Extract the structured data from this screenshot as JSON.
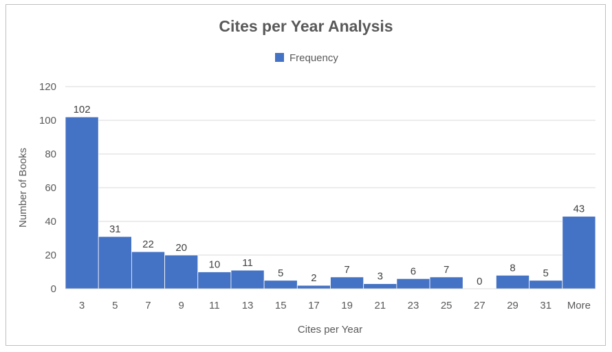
{
  "chart_data": {
    "type": "bar",
    "title": "Cites per Year Analysis",
    "xlabel": "Cites per Year",
    "ylabel": "Number of Books",
    "categories": [
      "3",
      "5",
      "7",
      "9",
      "11",
      "13",
      "15",
      "17",
      "19",
      "21",
      "23",
      "25",
      "27",
      "29",
      "31",
      "More"
    ],
    "series": [
      {
        "name": "Frequency",
        "values": [
          102,
          31,
          22,
          20,
          10,
          11,
          5,
          2,
          7,
          3,
          6,
          7,
          0,
          8,
          5,
          43
        ],
        "color": "#4472c4"
      }
    ],
    "ylim": [
      0,
      120
    ],
    "yticks": [
      0,
      20,
      40,
      60,
      80,
      100,
      120
    ],
    "grid": true,
    "legend_position": "top-center",
    "data_labels": true
  }
}
